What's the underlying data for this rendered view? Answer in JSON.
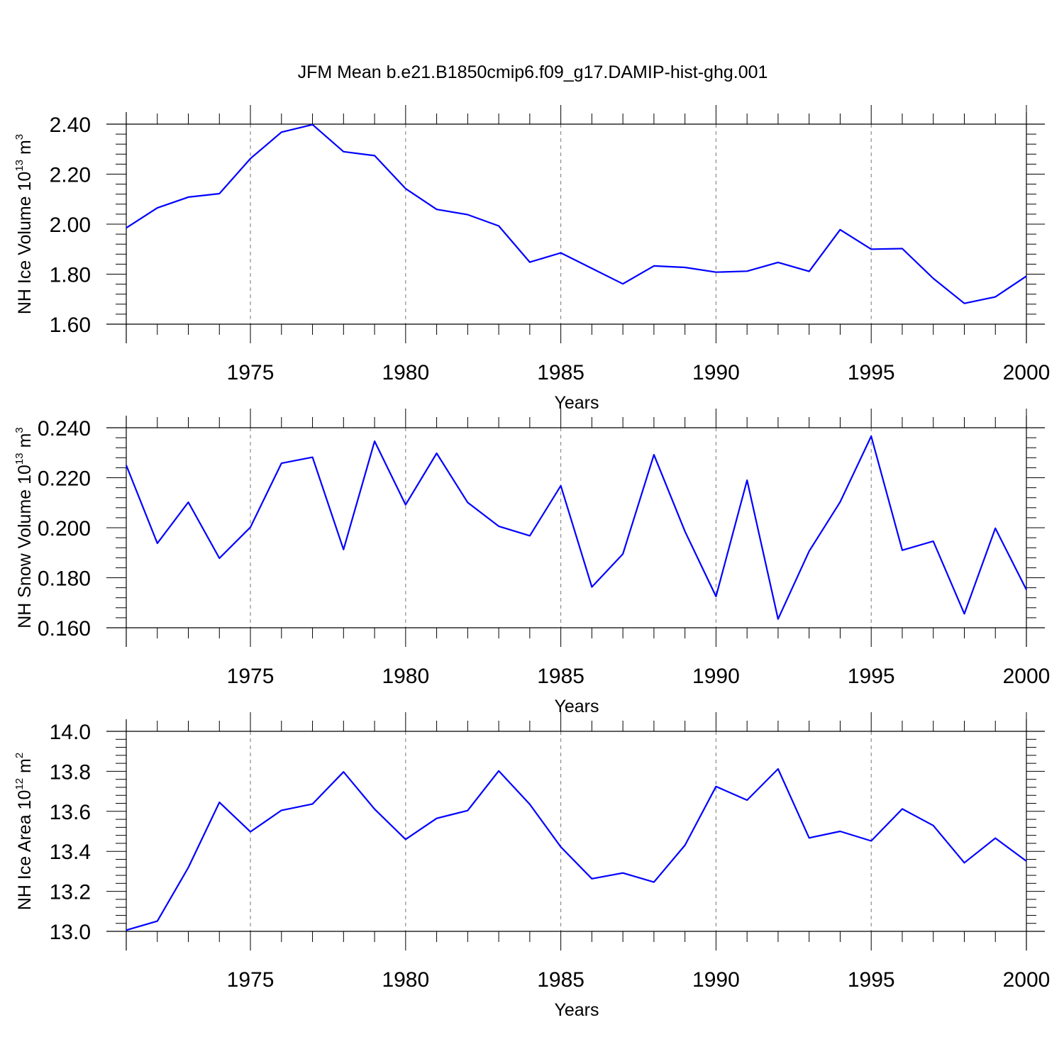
{
  "figure": {
    "title": "JFM Mean b.e21.B1850cmip6.f09_g17.DAMIP-hist-ghg.001"
  },
  "chart_data": [
    {
      "type": "line",
      "title": "JFM Mean b.e21.B1850cmip6.f09_g17.DAMIP-hist-ghg.001",
      "xlabel": "Years",
      "ylabel": "NH Ice Volume 10¹³ m³",
      "ylabel_parts": [
        "NH Ice Volume 10",
        "13",
        " m",
        "3"
      ],
      "xlim": [
        1971,
        2000
      ],
      "ylim": [
        1.6,
        2.4
      ],
      "grid": "vertical dashed at major x ticks",
      "x_ticks": [
        1975,
        1980,
        1985,
        1990,
        1995,
        2000
      ],
      "x_tick_labels": [
        "1975",
        "1980",
        "1985",
        "1990",
        "1995",
        "2000"
      ],
      "y_ticks": [
        1.6,
        1.8,
        2.0,
        2.2,
        2.4
      ],
      "y_tick_labels": [
        "1.60",
        "1.80",
        "2.00",
        "2.20",
        "2.40"
      ],
      "y_minor_step": 0.04,
      "x": [
        1971,
        1972,
        1973,
        1974,
        1975,
        1976,
        1977,
        1978,
        1979,
        1980,
        1981,
        1982,
        1983,
        1984,
        1985,
        1986,
        1987,
        1988,
        1989,
        1990,
        1991,
        1992,
        1993,
        1994,
        1995,
        1996,
        1997,
        1998,
        1999,
        2000
      ],
      "series": [
        {
          "name": "NH Ice Volume",
          "color": "#0000ff",
          "values": [
            1.985,
            2.065,
            2.108,
            2.122,
            2.262,
            2.368,
            2.398,
            2.29,
            2.274,
            2.142,
            2.059,
            2.038,
            1.993,
            1.848,
            1.885,
            1.823,
            1.761,
            1.833,
            1.827,
            1.808,
            1.812,
            1.847,
            1.811,
            1.978,
            1.9,
            1.902,
            1.783,
            1.683,
            1.709,
            1.792
          ]
        }
      ]
    },
    {
      "type": "line",
      "xlabel": "Years",
      "ylabel": "NH Snow Volume 10¹³ m³",
      "ylabel_parts": [
        "NH Snow Volume 10",
        "13",
        " m",
        "3"
      ],
      "xlim": [
        1971,
        2000
      ],
      "ylim": [
        0.16,
        0.24
      ],
      "grid": "vertical dashed at major x ticks",
      "x_ticks": [
        1975,
        1980,
        1985,
        1990,
        1995,
        2000
      ],
      "x_tick_labels": [
        "1975",
        "1980",
        "1985",
        "1990",
        "1995",
        "2000"
      ],
      "y_ticks": [
        0.16,
        0.18,
        0.2,
        0.22,
        0.24
      ],
      "y_tick_labels": [
        "0.160",
        "0.180",
        "0.200",
        "0.220",
        "0.240"
      ],
      "y_minor_step": 0.004,
      "x": [
        1971,
        1972,
        1973,
        1974,
        1975,
        1976,
        1977,
        1978,
        1979,
        1980,
        1981,
        1982,
        1983,
        1984,
        1985,
        1986,
        1987,
        1988,
        1989,
        1990,
        1991,
        1992,
        1993,
        1994,
        1995,
        1996,
        1997,
        1998,
        1999,
        2000
      ],
      "series": [
        {
          "name": "NH Snow Volume",
          "color": "#0000ff",
          "values": [
            0.225,
            0.1938,
            0.2102,
            0.1878,
            0.2002,
            0.2258,
            0.2282,
            0.1913,
            0.2346,
            0.2092,
            0.2298,
            0.2101,
            0.2006,
            0.1968,
            0.2168,
            0.1763,
            0.1895,
            0.2292,
            0.1985,
            0.1725,
            0.219,
            0.1635,
            0.1906,
            0.2103,
            0.2366,
            0.191,
            0.1946,
            0.1656,
            0.1998,
            0.1752
          ]
        }
      ]
    },
    {
      "type": "line",
      "xlabel": "Years",
      "ylabel": "NH Ice Area 10¹² m²",
      "ylabel_parts": [
        "NH Ice Area 10",
        "12",
        " m",
        "2"
      ],
      "xlim": [
        1971,
        2000
      ],
      "ylim": [
        13.0,
        14.0
      ],
      "grid": "vertical dashed at major x ticks",
      "x_ticks": [
        1975,
        1980,
        1985,
        1990,
        1995,
        2000
      ],
      "x_tick_labels": [
        "1975",
        "1980",
        "1985",
        "1990",
        "1995",
        "2000"
      ],
      "y_ticks": [
        13.0,
        13.2,
        13.4,
        13.6,
        13.8,
        14.0
      ],
      "y_tick_labels": [
        "13.0",
        "13.2",
        "13.4",
        "13.6",
        "13.8",
        "14.0"
      ],
      "y_minor_step": 0.04,
      "x": [
        1971,
        1972,
        1973,
        1974,
        1975,
        1976,
        1977,
        1978,
        1979,
        1980,
        1981,
        1982,
        1983,
        1984,
        1985,
        1986,
        1987,
        1988,
        1989,
        1990,
        1991,
        1992,
        1993,
        1994,
        1995,
        1996,
        1997,
        1998,
        1999,
        2000
      ],
      "series": [
        {
          "name": "NH Ice Area",
          "color": "#0000ff",
          "values": [
            13.006,
            13.051,
            13.319,
            13.645,
            13.498,
            13.605,
            13.637,
            13.797,
            13.611,
            13.46,
            13.565,
            13.604,
            13.802,
            13.635,
            13.422,
            13.263,
            13.292,
            13.246,
            13.431,
            13.724,
            13.656,
            13.812,
            13.467,
            13.5,
            13.452,
            13.612,
            13.529,
            13.343,
            13.466,
            13.351
          ]
        }
      ]
    }
  ]
}
